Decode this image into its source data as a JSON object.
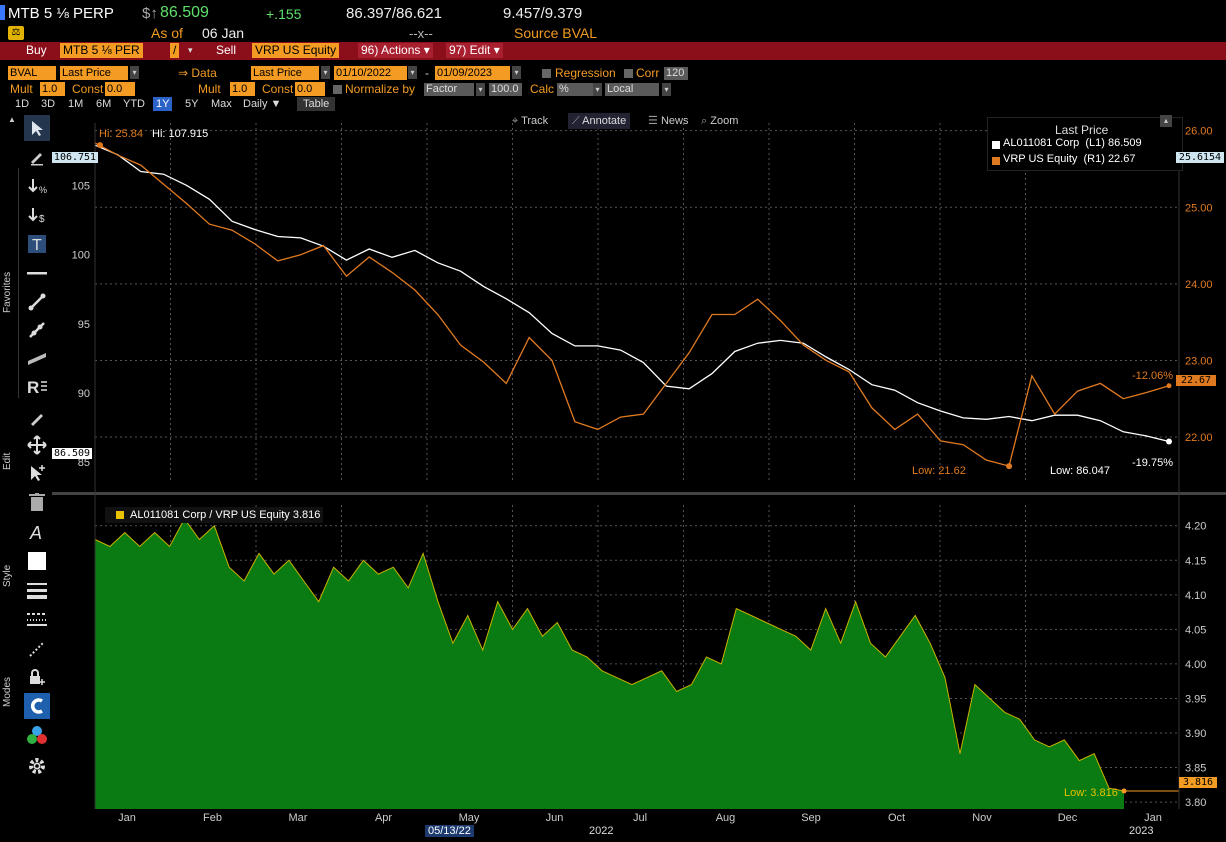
{
  "header": {
    "ticker": "MTB 5 ⅛ PERP",
    "price_prefix": "$↑",
    "price": "86.509",
    "change": "+.155",
    "bid_ask": "86.397/86.621",
    "yields": "9.457/9.379",
    "as_of": "As of",
    "as_of_date": "06 Jan",
    "cross": "--x--",
    "source": "Source BVAL"
  },
  "action_bar": {
    "buy": "Buy",
    "security1": "MTB 5 ⅛ PER",
    "slash": "/",
    "sell": "Sell",
    "security2": "VRP US Equity",
    "actions": "96) Actions ▾",
    "edit": "97) Edit ▾"
  },
  "controls": {
    "bval": "BVAL",
    "field1": "Last Price",
    "data_label": "⇒ Data",
    "field2": "Last Price",
    "start_date": "01/10/2022",
    "dash": "-",
    "end_date": "01/09/2023",
    "regression": "Regression",
    "corr": "Corr",
    "corr_value": "120",
    "mult1_label": "Mult",
    "mult1": "1.0",
    "const1_label": "Const",
    "const1": "0.0",
    "mult2_label": "Mult",
    "mult2": "1.0",
    "const2_label": "Const",
    "const2": "0.0",
    "normalize_label": "Normalize by",
    "normalize": "Factor",
    "normalize_value": "100.0",
    "calc_label": "Calc",
    "calc": "%",
    "currency": "Local"
  },
  "periods": [
    "1D",
    "3D",
    "1M",
    "6M",
    "YTD",
    "1Y",
    "5Y",
    "Max",
    "Daily ▼",
    "Table"
  ],
  "active_period": "1Y",
  "chart_toolbar": {
    "track": "Track",
    "annotate": "Annotate",
    "news": "News",
    "zoom": "Zoom"
  },
  "left_labels": {
    "favorites": "Favorites",
    "edit": "Edit",
    "style": "Style",
    "modes": "Modes"
  },
  "legend": {
    "title": "Last Price",
    "series1": "AL011081 Corp  (L1) 86.509",
    "series2": "VRP US Equity  (R1) 22.67",
    "ratio": "AL011081 Corp / VRP US Equity 3.816"
  },
  "annotations": {
    "hi_vrp": "Hi: 25.84",
    "hi_bond": "Hi: 107.915",
    "low_vrp": "Low: 21.62",
    "low_bond": "Low: 86.047",
    "pct_vrp": "-12.06%",
    "pct_bond": "-19.75%",
    "low_ratio": "Low: 3.816",
    "date_marker": "05/13/22",
    "year1": "2022",
    "year2": "2023"
  },
  "axis_badges": {
    "left_top": "106.751",
    "left_last": "86.509",
    "right_top": "25.6154",
    "right_last": "22.67",
    "ratio_last": "3.816"
  },
  "colors": {
    "accent": "#f39b22",
    "bond_line": "#ffffff",
    "vrp_line": "#e07a20",
    "ratio_fill": "#0a7a12",
    "header_red": "#8b0f1a"
  },
  "chart_data": [
    {
      "type": "line",
      "title": "Last Price",
      "x_ticks": [
        "Jan",
        "Feb",
        "Mar",
        "Apr",
        "May",
        "Jun",
        "Jul",
        "Aug",
        "Sep",
        "Oct",
        "Nov",
        "Dec",
        "Jan"
      ],
      "left_axis": {
        "ticks": [
          "85",
          "90",
          "95",
          "100",
          "105"
        ],
        "range": [
          83.5,
          109.5
        ]
      },
      "right_axis": {
        "ticks": [
          "22.00",
          "23.00",
          "24.00",
          "25.00",
          "26.00"
        ],
        "range": [
          21.4,
          26.1
        ]
      },
      "series": [
        {
          "name": "AL011081 Corp",
          "axis": "left",
          "color": "#ffffff",
          "values": [
            107.9,
            107.2,
            106.0,
            105.8,
            105.0,
            104.0,
            102.4,
            101.8,
            101.3,
            101.2,
            100.6,
            99.6,
            100.4,
            99.8,
            100.3,
            99.4,
            98.8,
            97.7,
            96.8,
            95.8,
            94.3,
            93.4,
            93.4,
            93.1,
            92.2,
            90.5,
            90.3,
            91.4,
            93.0,
            93.6,
            93.8,
            93.6,
            92.6,
            91.7,
            90.6,
            90.2,
            89.3,
            88.7,
            88.2,
            88.1,
            88.3,
            88.0,
            88.4,
            88.4,
            88.0,
            87.2,
            86.9,
            86.5
          ]
        },
        {
          "name": "VRP US Equity",
          "axis": "right",
          "color": "#e07a20",
          "values": [
            25.84,
            25.68,
            25.55,
            25.3,
            25.05,
            24.78,
            24.7,
            24.52,
            24.3,
            24.38,
            24.5,
            24.1,
            24.35,
            24.15,
            23.92,
            23.6,
            23.2,
            22.98,
            22.7,
            23.3,
            23.0,
            22.2,
            22.1,
            22.26,
            22.3,
            22.7,
            23.1,
            23.6,
            23.6,
            23.8,
            23.52,
            23.2,
            23.0,
            22.85,
            22.38,
            22.1,
            22.3,
            21.95,
            21.9,
            21.7,
            21.62,
            22.8,
            22.3,
            22.6,
            22.7,
            22.5,
            22.58,
            22.67
          ]
        }
      ]
    },
    {
      "type": "area",
      "title": "AL011081 Corp / VRP US Equity",
      "y_ticks": [
        "3.80",
        "3.85",
        "3.90",
        "3.95",
        "4.00",
        "4.05",
        "4.10",
        "4.15",
        "4.20"
      ],
      "range": [
        3.79,
        4.23
      ],
      "series": [
        {
          "name": "AL011081 Corp / VRP US Equity",
          "color": "#0a7a12",
          "values": [
            4.18,
            4.17,
            4.19,
            4.17,
            4.19,
            4.17,
            4.21,
            4.18,
            4.2,
            4.14,
            4.12,
            4.16,
            4.13,
            4.15,
            4.12,
            4.09,
            4.14,
            4.12,
            4.15,
            4.13,
            4.14,
            4.11,
            4.16,
            4.09,
            4.03,
            4.07,
            4.02,
            4.09,
            4.05,
            4.08,
            4.04,
            4.06,
            4.02,
            4.01,
            3.99,
            3.98,
            3.97,
            3.98,
            3.99,
            3.96,
            3.97,
            4.01,
            4.0,
            4.08,
            4.07,
            4.06,
            4.05,
            4.04,
            4.02,
            4.08,
            4.03,
            4.09,
            4.03,
            4.01,
            4.04,
            4.07,
            4.03,
            3.98,
            3.87,
            3.97,
            3.95,
            3.93,
            3.92,
            3.89,
            3.88,
            3.89,
            3.86,
            3.87,
            3.82,
            3.816
          ]
        }
      ]
    }
  ]
}
